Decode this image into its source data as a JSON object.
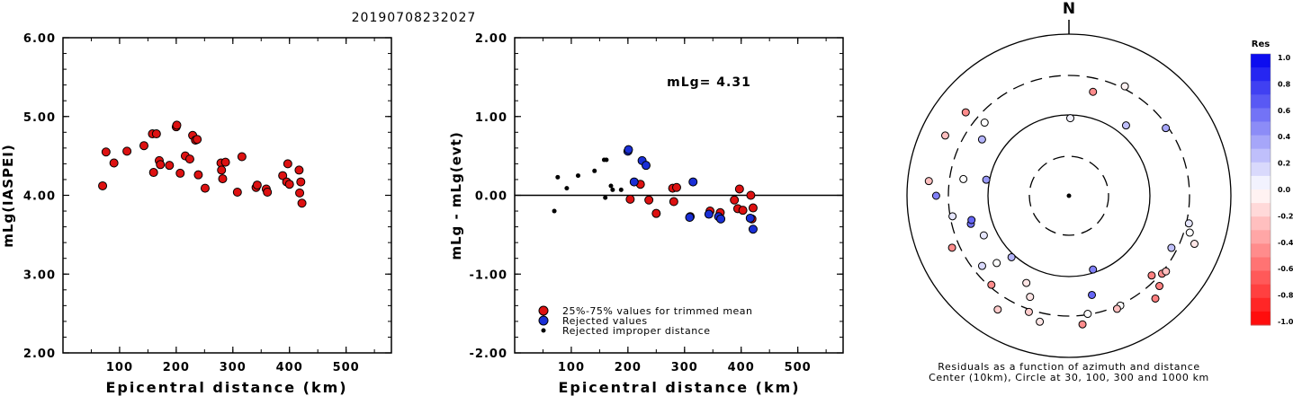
{
  "title": "20190708232027",
  "chart_data": [
    {
      "type": "scatter",
      "ylabel": "mLg(IASPEI)",
      "xlabel": "Epicentral distance (km)",
      "xlim": [
        0,
        580
      ],
      "ylim": [
        2.0,
        6.0
      ],
      "xticks": [
        "100",
        "200",
        "300",
        "400",
        "500"
      ],
      "yticks": [
        "2.00",
        "3.00",
        "4.00",
        "5.00",
        "6.00"
      ],
      "point_color": "#dd1111",
      "points": [
        [
          70,
          4.12
        ],
        [
          76,
          4.55
        ],
        [
          90,
          4.41
        ],
        [
          113,
          4.56
        ],
        [
          143,
          4.63
        ],
        [
          158,
          4.78
        ],
        [
          165,
          4.78
        ],
        [
          160,
          4.29
        ],
        [
          170,
          4.44
        ],
        [
          172,
          4.39
        ],
        [
          188,
          4.38
        ],
        [
          200,
          4.87
        ],
        [
          201,
          4.89
        ],
        [
          207,
          4.28
        ],
        [
          216,
          4.5
        ],
        [
          224,
          4.46
        ],
        [
          229,
          4.76
        ],
        [
          234,
          4.7
        ],
        [
          237,
          4.71
        ],
        [
          239,
          4.26
        ],
        [
          251,
          4.09
        ],
        [
          279,
          4.41
        ],
        [
          280,
          4.32
        ],
        [
          282,
          4.21
        ],
        [
          287,
          4.42
        ],
        [
          308,
          4.04
        ],
        [
          316,
          4.49
        ],
        [
          341,
          4.1
        ],
        [
          343,
          4.13
        ],
        [
          359,
          4.08
        ],
        [
          361,
          4.04
        ],
        [
          388,
          4.25
        ],
        [
          395,
          4.17
        ],
        [
          397,
          4.4
        ],
        [
          400,
          4.14
        ],
        [
          417,
          4.32
        ],
        [
          418,
          4.03
        ],
        [
          420,
          4.17
        ],
        [
          422,
          3.9
        ]
      ]
    },
    {
      "type": "scatter",
      "ylabel": "mLg - mLg(evt)",
      "xlabel": "Epicentral distance (km)",
      "xlim": [
        0,
        580
      ],
      "ylim": [
        -2.0,
        2.0
      ],
      "xticks": [
        "100",
        "200",
        "300",
        "400",
        "500"
      ],
      "yticks": [
        "-2.00",
        "-1.00",
        "0.00",
        "1.00",
        "2.00"
      ],
      "annotation": "mLg= 4.31",
      "reference_line": 0,
      "legend": [
        {
          "label": "25%-75% values for trimmed mean",
          "color": "#dd1111"
        },
        {
          "label": "Rejected values",
          "color": "#1a2fd6"
        },
        {
          "label": "Rejected improper distance",
          "color": "#000000"
        }
      ],
      "series": [
        {
          "color": "#dd1111",
          "points": [
            [
              204,
              -0.05
            ],
            [
              222,
              0.14
            ],
            [
              237,
              -0.06
            ],
            [
              250,
              -0.23
            ],
            [
              279,
              0.09
            ],
            [
              281,
              -0.08
            ],
            [
              286,
              0.1
            ],
            [
              310,
              -0.27
            ],
            [
              345,
              -0.2
            ],
            [
              363,
              -0.22
            ],
            [
              388,
              -0.06
            ],
            [
              394,
              -0.17
            ],
            [
              397,
              0.08
            ],
            [
              403,
              -0.19
            ],
            [
              417,
              0.0
            ],
            [
              419,
              -0.3
            ],
            [
              421,
              -0.16
            ]
          ]
        },
        {
          "color": "#1a2fd6",
          "points": [
            [
              200,
              0.56
            ],
            [
              201,
              0.58
            ],
            [
              211,
              0.17
            ],
            [
              225,
              0.44
            ],
            [
              232,
              0.38
            ],
            [
              315,
              0.17
            ],
            [
              309,
              -0.28
            ],
            [
              343,
              -0.24
            ],
            [
              360,
              -0.27
            ],
            [
              364,
              -0.3
            ],
            [
              416,
              -0.29
            ],
            [
              421,
              -0.43
            ]
          ]
        },
        {
          "color": "#000000",
          "small": true,
          "points": [
            [
              70,
              -0.2
            ],
            [
              76,
              0.23
            ],
            [
              92,
              0.09
            ],
            [
              112,
              0.25
            ],
            [
              141,
              0.31
            ],
            [
              158,
              0.45
            ],
            [
              162,
              0.45
            ],
            [
              160,
              -0.03
            ],
            [
              170,
              0.12
            ],
            [
              173,
              0.07
            ],
            [
              188,
              0.07
            ]
          ]
        }
      ]
    },
    {
      "type": "polar-scatter",
      "north_label": "N",
      "caption_line1": "Residuals as a function of azimuth and distance",
      "caption_line2": "Center (10km), Circle at 30, 100, 300 and 1000 km",
      "colorbar": {
        "title": "Res",
        "labels": [
          "1.0",
          "0.8",
          "0.6",
          "0.4",
          "0.2",
          "0.0",
          "-0.2",
          "-0.4",
          "-0.6",
          "-0.8",
          "-1.0"
        ],
        "top_color": "#0000ee",
        "zero_color": "#ffffff",
        "bottom_color": "#ff0000"
      },
      "points": [
        {
          "az": 1,
          "ring": 0.48,
          "res": 0.05
        },
        {
          "az": 13,
          "ring": 0.66,
          "res": -0.45
        },
        {
          "az": 39,
          "ring": 0.56,
          "res": 0.25
        },
        {
          "az": 27,
          "ring": 0.76,
          "res": -0.05
        },
        {
          "az": 55,
          "ring": 0.73,
          "res": 0.35
        },
        {
          "az": 103,
          "ring": 0.76,
          "res": 0.1
        },
        {
          "az": 111,
          "ring": 0.83,
          "res": -0.1
        },
        {
          "az": 107,
          "ring": 0.78,
          "res": 0.0
        },
        {
          "az": 117,
          "ring": 0.71,
          "res": 0.25
        },
        {
          "az": 130,
          "ring": 0.75,
          "res": -0.45
        },
        {
          "az": 135,
          "ring": 0.79,
          "res": -0.5
        },
        {
          "az": 134,
          "ring": 0.71,
          "res": -0.5
        },
        {
          "az": 128,
          "ring": 0.76,
          "res": -0.25
        },
        {
          "az": 140,
          "ring": 0.83,
          "res": -0.5
        },
        {
          "az": 155,
          "ring": 0.75,
          "res": 0.0
        },
        {
          "az": 157,
          "ring": 0.76,
          "res": -0.25
        },
        {
          "az": 171,
          "ring": 0.74,
          "res": 0.0
        },
        {
          "az": 174,
          "ring": 0.8,
          "res": -0.45
        },
        {
          "az": 162,
          "ring": 0.48,
          "res": 0.5
        },
        {
          "az": 167,
          "ring": 0.63,
          "res": 0.6
        },
        {
          "az": 193,
          "ring": 0.8,
          "res": -0.1
        },
        {
          "az": 199,
          "ring": 0.76,
          "res": -0.2
        },
        {
          "az": 201,
          "ring": 0.67,
          "res": -0.1
        },
        {
          "az": 206,
          "ring": 0.6,
          "res": -0.1
        },
        {
          "az": 212,
          "ring": 0.83,
          "res": -0.2
        },
        {
          "az": 221,
          "ring": 0.73,
          "res": -0.45
        },
        {
          "az": 223,
          "ring": 0.52,
          "res": 0.3
        },
        {
          "az": 227,
          "ring": 0.61,
          "res": 0.0
        },
        {
          "az": 231,
          "ring": 0.69,
          "res": 0.15
        },
        {
          "az": 245,
          "ring": 0.58,
          "res": 0.1
        },
        {
          "az": 246,
          "ring": 0.79,
          "res": -0.45
        },
        {
          "az": 254,
          "ring": 0.63,
          "res": 0.55
        },
        {
          "az": 256,
          "ring": 0.62,
          "res": 0.6
        },
        {
          "az": 260,
          "ring": 0.73,
          "res": 0.1
        },
        {
          "az": 270,
          "ring": 0.82,
          "res": 0.5
        },
        {
          "az": 279,
          "ring": 0.66,
          "res": 0.0
        },
        {
          "az": 276,
          "ring": 0.87,
          "res": -0.25
        },
        {
          "az": 281,
          "ring": 0.52,
          "res": 0.4
        },
        {
          "az": 296,
          "ring": 0.85,
          "res": -0.25
        },
        {
          "az": 303,
          "ring": 0.64,
          "res": 0.3
        },
        {
          "az": 309,
          "ring": 0.82,
          "res": -0.45
        },
        {
          "az": 311,
          "ring": 0.69,
          "res": 0.0
        }
      ]
    }
  ]
}
